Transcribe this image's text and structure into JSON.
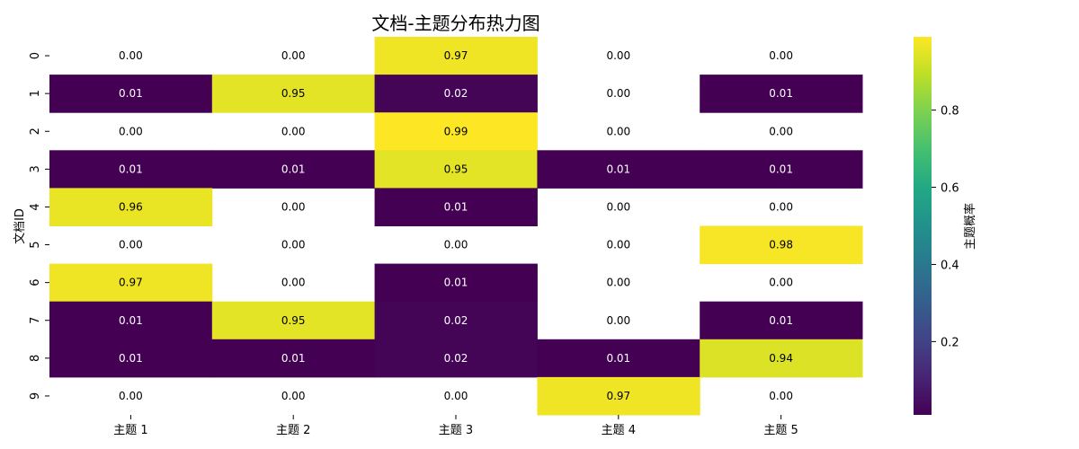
{
  "chart_data": {
    "type": "heatmap",
    "title": "文档-主题分布热力图",
    "xlabel": "",
    "ylabel": "文档ID",
    "x_categories": [
      "主题 1",
      "主题 2",
      "主题 3",
      "主题 4",
      "主题 5"
    ],
    "y_categories": [
      "0",
      "1",
      "2",
      "3",
      "4",
      "5",
      "6",
      "7",
      "8",
      "9"
    ],
    "values": [
      [
        0.0,
        0.0,
        0.97,
        0.0,
        0.0
      ],
      [
        0.01,
        0.95,
        0.02,
        0.0,
        0.01
      ],
      [
        0.0,
        0.0,
        0.99,
        0.0,
        0.0
      ],
      [
        0.01,
        0.01,
        0.95,
        0.01,
        0.01
      ],
      [
        0.96,
        0.0,
        0.01,
        0.0,
        0.0
      ],
      [
        0.0,
        0.0,
        0.0,
        0.0,
        0.98
      ],
      [
        0.97,
        0.0,
        0.01,
        0.0,
        0.0
      ],
      [
        0.01,
        0.95,
        0.02,
        0.0,
        0.01
      ],
      [
        0.01,
        0.01,
        0.02,
        0.01,
        0.94
      ],
      [
        0.0,
        0.0,
        0.0,
        0.97,
        0.0
      ]
    ],
    "value_labels": [
      [
        "0.00",
        "0.00",
        "0.97",
        "0.00",
        "0.00"
      ],
      [
        "0.01",
        "0.95",
        "0.02",
        "0.00",
        "0.01"
      ],
      [
        "0.00",
        "0.00",
        "0.99",
        "0.00",
        "0.00"
      ],
      [
        "0.01",
        "0.01",
        "0.95",
        "0.01",
        "0.01"
      ],
      [
        "0.96",
        "0.00",
        "0.01",
        "0.00",
        "0.00"
      ],
      [
        "0.00",
        "0.00",
        "0.00",
        "0.00",
        "0.98"
      ],
      [
        "0.97",
        "0.00",
        "0.01",
        "0.00",
        "0.00"
      ],
      [
        "0.01",
        "0.95",
        "0.02",
        "0.00",
        "0.01"
      ],
      [
        "0.01",
        "0.01",
        "0.02",
        "0.01",
        "0.94"
      ],
      [
        "0.00",
        "0.00",
        "0.00",
        "0.97",
        "0.00"
      ]
    ],
    "masked_value": 0.0,
    "colormap": "viridis",
    "vmin": 0.01,
    "vmax": 0.99,
    "colorbar": {
      "label": "主题概率",
      "ticks": [
        0.2,
        0.4,
        0.6,
        0.8
      ],
      "tick_labels": [
        "0.2",
        "0.4",
        "0.6",
        "0.8"
      ]
    },
    "grid": false,
    "colors": {
      "low": "#440154",
      "high": "#fde725",
      "background": "#ffffff",
      "low_text": "#ffffff",
      "high_text": "#000000",
      "masked_text": "#000000"
    }
  }
}
